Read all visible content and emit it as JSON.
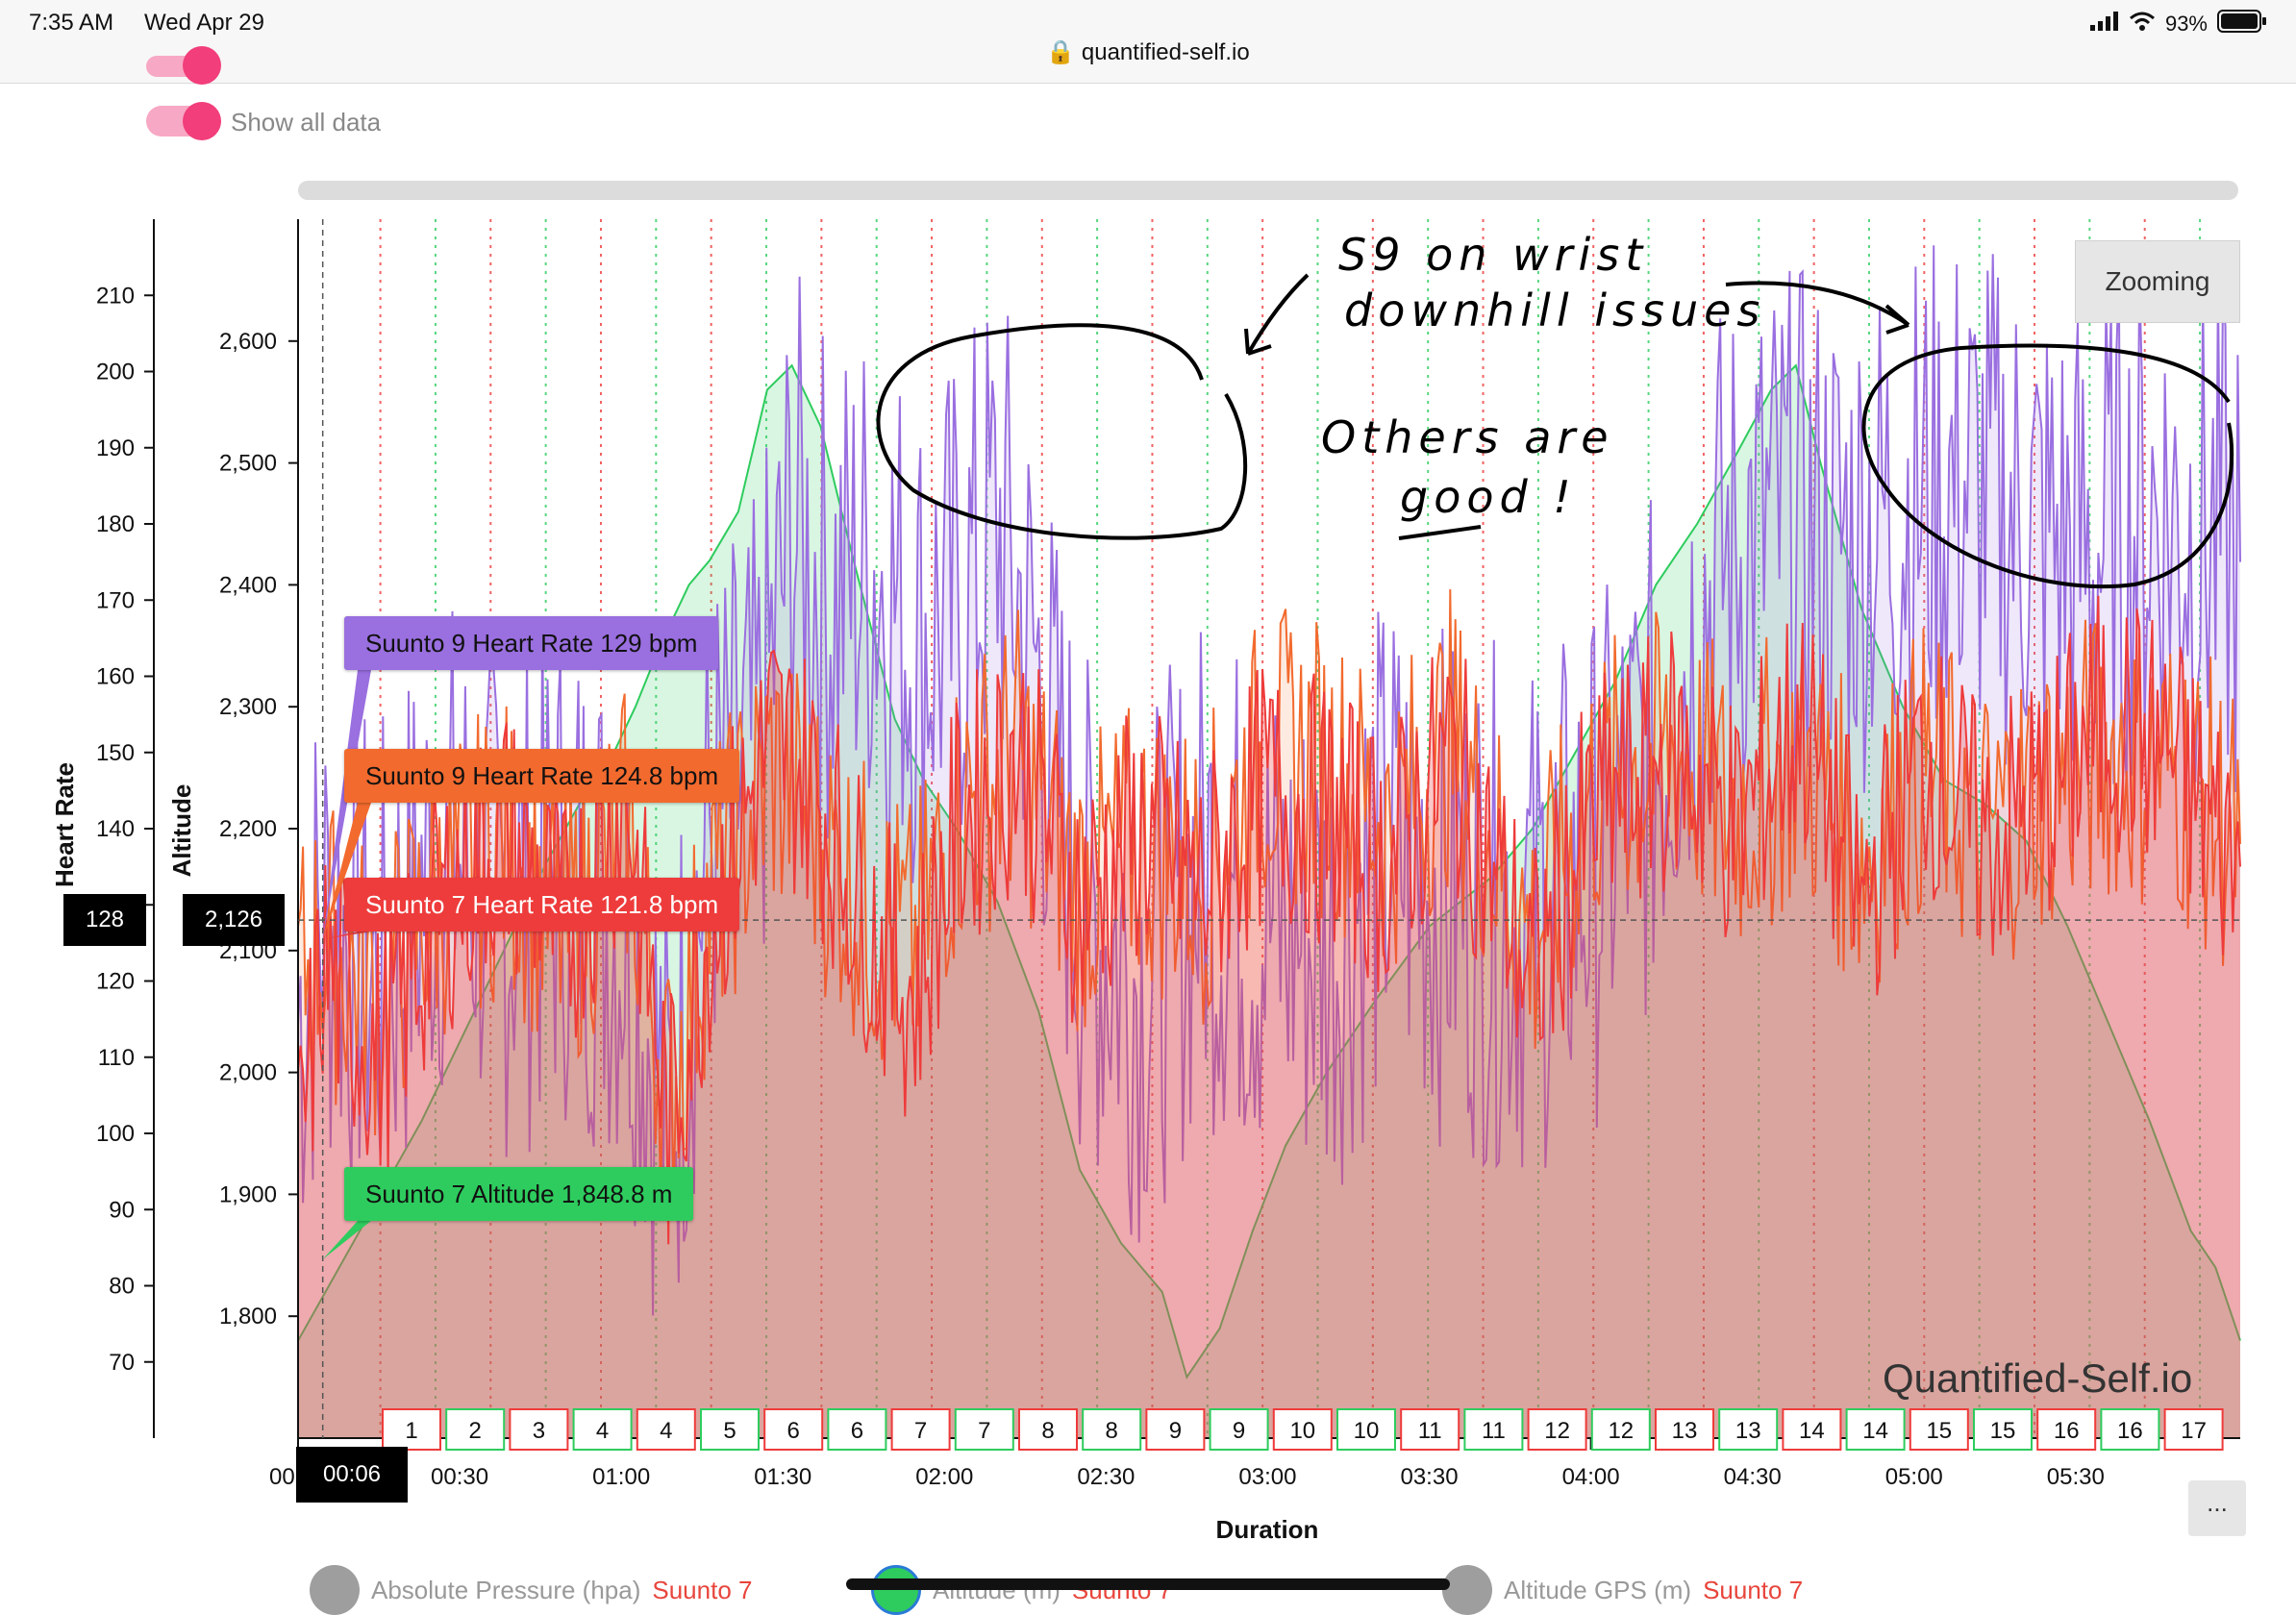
{
  "status_bar": {
    "time": "7:35 AM",
    "date": "Wed Apr 29",
    "url": "quantified-self.io",
    "battery": "93%"
  },
  "controls": {
    "show_all_data_label": "Show all data"
  },
  "zoom_button": "Zooming",
  "more_button": "...",
  "watermark": "Quantified-Self.io",
  "cursor": {
    "hr_value": "128",
    "alt_value": "2,126",
    "time_value": "00:06"
  },
  "tooltips": [
    {
      "label": "Suunto 9 Heart Rate 129 bpm",
      "color": "#9a6fe0"
    },
    {
      "label": "Suunto 9 Heart Rate 124.8 bpm",
      "color": "#f26a2e"
    },
    {
      "label": "Suunto 7 Heart Rate 121.8 bpm",
      "color": "#ee3b3b"
    },
    {
      "label": "Suunto 7 Altitude 1,848.8 m",
      "color": "#2ecc5e"
    }
  ],
  "legend": [
    {
      "name": "Absolute Pressure (hpa)",
      "device": "Suunto 7"
    },
    {
      "name": "Altitude (m)",
      "device": "Suunto 7"
    },
    {
      "name": "Altitude GPS (m)",
      "device": "Suunto 7"
    }
  ],
  "annotations": {
    "line1": "S9 on wrist",
    "line2": "downhill issues",
    "line3": "Others are",
    "line4": "good !"
  },
  "chart_data": {
    "type": "line",
    "xlabel": "Duration",
    "ylabel_left": "Heart Rate",
    "ylabel_right": "Altitude",
    "x_ticks": [
      "00:00",
      "00:30",
      "01:00",
      "01:30",
      "02:00",
      "02:30",
      "03:00",
      "03:30",
      "04:00",
      "04:30",
      "05:00",
      "05:30"
    ],
    "hr_ticks": [
      70,
      80,
      90,
      100,
      110,
      120,
      130,
      140,
      150,
      160,
      170,
      180,
      190,
      200,
      210
    ],
    "hr_tick_labels": [
      "70",
      "80",
      "90",
      "100",
      "110",
      "120",
      "",
      "140",
      "150",
      "160",
      "170",
      "180",
      "190",
      "200",
      "210"
    ],
    "alt_ticks": [
      1800,
      1900,
      2000,
      2100,
      2200,
      2300,
      2400,
      2500,
      2600
    ],
    "alt_tick_labels": [
      "1,800",
      "1,900",
      "2,000",
      "2,100",
      "2,200",
      "2,300",
      "2,400",
      "2,500",
      "2,600"
    ],
    "hr_range": [
      60,
      220
    ],
    "alt_range": [
      1700,
      2700
    ],
    "x_range_min": [
      0,
      340
    ],
    "cursor": {
      "t_min": 6,
      "hr": 128,
      "alt": 2126
    },
    "lap_labels": [
      "1",
      "2",
      "3",
      "4",
      "4",
      "5",
      "6",
      "6",
      "7",
      "7",
      "8",
      "8",
      "9",
      "9",
      "10",
      "10",
      "11",
      "11",
      "12",
      "12",
      "13",
      "13",
      "14",
      "14",
      "15",
      "15",
      "16",
      "16",
      "17"
    ],
    "series": [
      {
        "name": "Suunto 7 Altitude",
        "axis": "alt",
        "color": "#2ecc5e",
        "points": [
          [
            0,
            1780
          ],
          [
            10,
            1840
          ],
          [
            20,
            1900
          ],
          [
            30,
            1960
          ],
          [
            40,
            2030
          ],
          [
            50,
            2100
          ],
          [
            60,
            2170
          ],
          [
            70,
            2230
          ],
          [
            75,
            2250
          ],
          [
            82,
            2300
          ],
          [
            88,
            2350
          ],
          [
            95,
            2400
          ],
          [
            100,
            2420
          ],
          [
            107,
            2460
          ],
          [
            114,
            2560
          ],
          [
            120,
            2580
          ],
          [
            127,
            2530
          ],
          [
            135,
            2420
          ],
          [
            145,
            2290
          ],
          [
            152,
            2240
          ],
          [
            160,
            2200
          ],
          [
            170,
            2140
          ],
          [
            180,
            2050
          ],
          [
            190,
            1920
          ],
          [
            200,
            1860
          ],
          [
            210,
            1820
          ],
          [
            216,
            1750
          ],
          [
            224,
            1790
          ],
          [
            232,
            1870
          ],
          [
            240,
            1940
          ],
          [
            250,
            2000
          ],
          [
            262,
            2060
          ],
          [
            275,
            2120
          ],
          [
            290,
            2160
          ],
          [
            300,
            2200
          ],
          [
            310,
            2260
          ],
          [
            320,
            2320
          ],
          [
            330,
            2400
          ],
          [
            340,
            2450
          ],
          [
            350,
            2510
          ],
          [
            358,
            2560
          ],
          [
            364,
            2580
          ],
          [
            370,
            2500
          ],
          [
            380,
            2380
          ],
          [
            390,
            2300
          ],
          [
            400,
            2240
          ],
          [
            410,
            2220
          ],
          [
            420,
            2190
          ],
          [
            430,
            2120
          ],
          [
            440,
            2040
          ],
          [
            450,
            1960
          ],
          [
            460,
            1870
          ],
          [
            466,
            1840
          ],
          [
            472,
            1780
          ]
        ]
      },
      {
        "name": "Suunto 7 Heart Rate",
        "axis": "hr",
        "color": "#ee3b3b",
        "points": [
          [
            0,
            95
          ],
          [
            6,
            122
          ],
          [
            20,
            110
          ],
          [
            35,
            130
          ],
          [
            50,
            140
          ],
          [
            65,
            126
          ],
          [
            80,
            145
          ],
          [
            90,
            100
          ],
          [
            100,
            128
          ],
          [
            115,
            152
          ],
          [
            125,
            146
          ],
          [
            140,
            126
          ],
          [
            150,
            118
          ],
          [
            160,
            140
          ],
          [
            175,
            150
          ],
          [
            190,
            130
          ],
          [
            205,
            140
          ],
          [
            220,
            132
          ],
          [
            235,
            145
          ],
          [
            250,
            142
          ],
          [
            265,
            135
          ],
          [
            280,
            150
          ],
          [
            300,
            120
          ],
          [
            315,
            142
          ],
          [
            335,
            150
          ],
          [
            350,
            140
          ],
          [
            365,
            155
          ],
          [
            380,
            130
          ],
          [
            395,
            150
          ],
          [
            410,
            138
          ],
          [
            425,
            145
          ],
          [
            440,
            155
          ],
          [
            455,
            150
          ],
          [
            466,
            140
          ],
          [
            472,
            135
          ]
        ]
      },
      {
        "name": "Suunto 9 Heart Rate (wrist)",
        "axis": "hr",
        "color": "#9a6fe0",
        "points": [
          [
            0,
            115
          ],
          [
            6,
            129
          ],
          [
            20,
            120
          ],
          [
            35,
            138
          ],
          [
            50,
            130
          ],
          [
            65,
            135
          ],
          [
            80,
            128
          ],
          [
            90,
            100
          ],
          [
            100,
            140
          ],
          [
            112,
            150
          ],
          [
            120,
            180
          ],
          [
            130,
            170
          ],
          [
            140,
            175
          ],
          [
            150,
            165
          ],
          [
            160,
            168
          ],
          [
            170,
            180
          ],
          [
            180,
            160
          ],
          [
            190,
            130
          ],
          [
            205,
            120
          ],
          [
            220,
            135
          ],
          [
            235,
            128
          ],
          [
            250,
            125
          ],
          [
            265,
            138
          ],
          [
            280,
            132
          ],
          [
            300,
            128
          ],
          [
            315,
            135
          ],
          [
            330,
            150
          ],
          [
            345,
            175
          ],
          [
            360,
            180
          ],
          [
            375,
            178
          ],
          [
            390,
            182
          ],
          [
            405,
            185
          ],
          [
            420,
            180
          ],
          [
            435,
            176
          ],
          [
            450,
            182
          ],
          [
            466,
            178
          ],
          [
            472,
            175
          ]
        ]
      },
      {
        "name": "Suunto 9 Heart Rate",
        "axis": "hr",
        "color": "#f26a2e",
        "points": [
          [
            0,
            120
          ],
          [
            6,
            125
          ],
          [
            20,
            118
          ],
          [
            35,
            132
          ],
          [
            50,
            138
          ],
          [
            65,
            126
          ],
          [
            80,
            140
          ],
          [
            90,
            104
          ],
          [
            100,
            130
          ],
          [
            115,
            148
          ],
          [
            125,
            140
          ],
          [
            140,
            128
          ],
          [
            150,
            124
          ],
          [
            160,
            142
          ],
          [
            175,
            150
          ],
          [
            190,
            132
          ],
          [
            205,
            138
          ],
          [
            220,
            134
          ],
          [
            235,
            150
          ],
          [
            250,
            148
          ],
          [
            265,
            140
          ],
          [
            280,
            152
          ],
          [
            300,
            125
          ],
          [
            315,
            145
          ],
          [
            335,
            150
          ],
          [
            350,
            142
          ],
          [
            365,
            150
          ],
          [
            380,
            136
          ],
          [
            395,
            148
          ],
          [
            410,
            140
          ],
          [
            425,
            146
          ],
          [
            440,
            150
          ],
          [
            455,
            148
          ],
          [
            466,
            142
          ],
          [
            472,
            138
          ]
        ]
      }
    ]
  }
}
